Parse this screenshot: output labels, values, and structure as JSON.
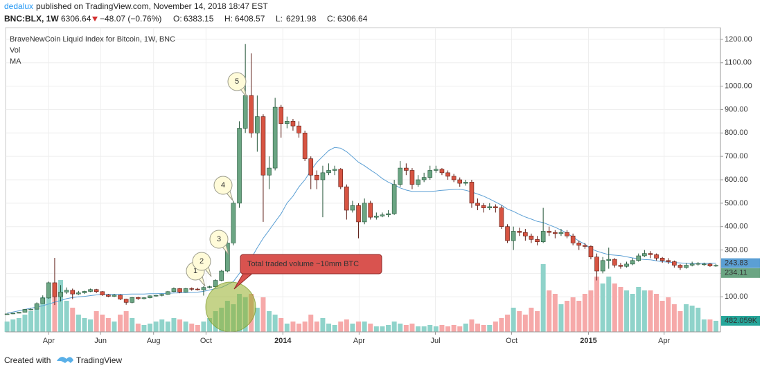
{
  "header": {
    "author": "dedalux",
    "byline": "published on TradingView.com, November 14, 2018 18:47 EST",
    "symbol": "BNC:BLX, 1W",
    "price": "6306.64",
    "change": "−48.07 (−0.76%)",
    "ohlc": [
      {
        "key": "O:",
        "value": "6383.15"
      },
      {
        "key": "H:",
        "value": "6408.57"
      },
      {
        "key": "L:",
        "value": "6291.98"
      },
      {
        "key": "C:",
        "value": "6306.64"
      }
    ]
  },
  "chart_data": {
    "type": "candlestick",
    "title": "BraveNewCoin Liquid Index for Bitcoin, 1W, BNC",
    "up_color": "#6ba583",
    "down_color": "#d75442",
    "grid": true,
    "open": [
      24,
      27,
      30,
      34,
      46,
      47,
      71,
      95,
      160,
      100,
      120,
      128,
      112,
      117,
      123,
      131,
      122,
      108,
      102,
      107,
      90,
      76,
      97,
      92,
      96,
      104,
      106,
      110,
      122,
      135,
      120,
      135,
      133,
      130,
      140,
      143,
      170,
      210,
      330,
      500,
      820,
      960,
      800,
      870,
      620,
      650,
      910,
      840,
      850,
      830,
      800,
      690,
      620,
      600,
      630,
      640,
      645,
      570,
      470,
      490,
      420,
      500,
      440,
      445,
      450,
      455,
      580,
      650,
      640,
      580,
      600,
      610,
      640,
      645,
      630,
      615,
      600,
      585,
      590,
      500,
      490,
      480,
      485,
      480,
      400,
      340,
      380,
      375,
      360,
      345,
      335,
      380,
      375,
      370,
      375,
      360,
      330,
      320,
      315,
      270,
      210,
      255,
      260,
      235,
      230,
      240,
      255,
      275,
      285,
      280,
      265,
      255,
      250,
      235,
      225,
      235,
      240,
      237,
      240,
      232
    ],
    "high": [
      28,
      31,
      35,
      48,
      50,
      76,
      106,
      165,
      266,
      150,
      140,
      135,
      125,
      126,
      135,
      134,
      124,
      112,
      112,
      110,
      92,
      99,
      100,
      98,
      107,
      108,
      113,
      125,
      140,
      137,
      138,
      140,
      138,
      145,
      147,
      175,
      215,
      340,
      510,
      850,
      1180,
      1140,
      960,
      880,
      700,
      950,
      920,
      870,
      860,
      850,
      810,
      700,
      640,
      660,
      670,
      660,
      650,
      580,
      510,
      500,
      520,
      510,
      460,
      460,
      470,
      600,
      680,
      670,
      650,
      620,
      630,
      660,
      660,
      650,
      640,
      625,
      610,
      600,
      600,
      520,
      500,
      500,
      495,
      490,
      410,
      400,
      395,
      390,
      370,
      360,
      480,
      400,
      385,
      390,
      385,
      370,
      340,
      330,
      320,
      285,
      270,
      310,
      265,
      245,
      250,
      265,
      285,
      300,
      295,
      285,
      270,
      265,
      255,
      240,
      245,
      250,
      248,
      246,
      244,
      240
    ],
    "low": [
      23,
      26,
      29,
      33,
      42,
      46,
      70,
      92,
      65,
      80,
      112,
      90,
      108,
      112,
      120,
      116,
      104,
      98,
      99,
      86,
      66,
      72,
      87,
      89,
      93,
      101,
      102,
      108,
      120,
      115,
      118,
      126,
      127,
      105,
      136,
      140,
      166,
      205,
      320,
      480,
      800,
      780,
      720,
      420,
      560,
      640,
      780,
      820,
      810,
      780,
      680,
      560,
      560,
      440,
      620,
      620,
      560,
      430,
      460,
      350,
      410,
      430,
      430,
      440,
      440,
      450,
      570,
      620,
      560,
      570,
      590,
      600,
      630,
      620,
      600,
      590,
      570,
      575,
      480,
      470,
      460,
      470,
      460,
      390,
      330,
      300,
      360,
      340,
      330,
      320,
      330,
      360,
      350,
      360,
      350,
      320,
      300,
      305,
      260,
      170,
      200,
      220,
      225,
      220,
      225,
      235,
      250,
      270,
      265,
      255,
      245,
      240,
      225,
      215,
      220,
      230,
      233,
      232,
      228,
      228
    ],
    "close": [
      27,
      30,
      34,
      46,
      47,
      71,
      95,
      160,
      100,
      120,
      128,
      112,
      117,
      123,
      131,
      122,
      108,
      102,
      107,
      90,
      76,
      97,
      92,
      96,
      104,
      106,
      110,
      122,
      135,
      120,
      135,
      133,
      130,
      140,
      143,
      170,
      210,
      330,
      500,
      820,
      960,
      800,
      870,
      620,
      650,
      910,
      840,
      850,
      830,
      800,
      690,
      620,
      600,
      630,
      640,
      645,
      570,
      470,
      490,
      420,
      500,
      440,
      445,
      450,
      455,
      580,
      650,
      640,
      580,
      600,
      610,
      640,
      645,
      630,
      615,
      600,
      585,
      590,
      500,
      490,
      480,
      485,
      480,
      400,
      340,
      380,
      375,
      360,
      345,
      335,
      380,
      375,
      370,
      375,
      360,
      330,
      320,
      315,
      270,
      210,
      255,
      260,
      235,
      230,
      240,
      255,
      275,
      285,
      280,
      265,
      255,
      250,
      235,
      225,
      235,
      240,
      242,
      240,
      232,
      234.11
    ],
    "volume": {
      "name": "Vol",
      "up_color": "#8fd3ca",
      "down_color": "#f6a9a9",
      "vlim": [
        0,
        3000000
      ],
      "values": [
        450000,
        540000,
        600000,
        750000,
        900000,
        1200000,
        1500000,
        1650000,
        2100000,
        2250000,
        1350000,
        1050000,
        750000,
        600000,
        540000,
        900000,
        750000,
        600000,
        450000,
        750000,
        900000,
        600000,
        360000,
        300000,
        360000,
        450000,
        540000,
        450000,
        600000,
        540000,
        450000,
        360000,
        300000,
        450000,
        600000,
        900000,
        1050000,
        1350000,
        1200000,
        1650000,
        1500000,
        1650000,
        1050000,
        1500000,
        900000,
        750000,
        600000,
        360000,
        450000,
        360000,
        450000,
        750000,
        450000,
        600000,
        360000,
        300000,
        450000,
        540000,
        360000,
        450000,
        450000,
        360000,
        240000,
        240000,
        300000,
        450000,
        360000,
        300000,
        360000,
        240000,
        240000,
        300000,
        240000,
        300000,
        240000,
        300000,
        240000,
        360000,
        540000,
        360000,
        300000,
        300000,
        450000,
        600000,
        750000,
        1050000,
        900000,
        750000,
        1050000,
        900000,
        2940000,
        1800000,
        1650000,
        1200000,
        1350000,
        1500000,
        1350000,
        1650000,
        1800000,
        2400000,
        2100000,
        2400000,
        2100000,
        1950000,
        1800000,
        1650000,
        1950000,
        1800000,
        1800000,
        1650000,
        1350000,
        1500000,
        1200000,
        900000,
        1200000,
        1140000,
        1050000,
        540000,
        540000,
        482059
      ],
      "value_labels": {
        "119": "482.059K"
      }
    },
    "ma": {
      "name": "MA",
      "color": "#5b9fd4",
      "values": [
        30,
        35,
        40,
        46,
        51,
        56,
        62,
        69,
        77,
        84,
        92,
        97,
        100,
        102,
        105,
        108,
        110,
        110,
        111,
        111,
        111,
        112,
        112,
        112,
        113,
        113,
        114,
        115,
        116,
        117,
        118,
        119,
        120,
        123,
        129,
        135,
        140,
        152,
        165,
        200,
        235,
        265,
        310,
        350,
        385,
        420,
        455,
        500,
        530,
        570,
        600,
        640,
        675,
        700,
        725,
        738,
        735,
        720,
        698,
        675,
        660,
        642,
        625,
        605,
        590,
        578,
        565,
        556,
        550,
        550,
        550,
        550,
        552,
        555,
        557,
        559,
        560,
        555,
        548,
        539,
        530,
        518,
        505,
        492,
        475,
        465,
        452,
        441,
        432,
        422,
        417,
        407,
        397,
        385,
        372,
        355,
        338,
        325,
        305,
        295,
        287,
        280,
        278,
        276,
        271,
        266,
        262,
        259,
        258,
        254,
        250,
        248,
        246,
        245,
        243,
        242,
        242,
        243,
        243.5,
        243.83
      ]
    },
    "ylim": [
      -50,
      1250
    ],
    "yticks": [
      {
        "value": 100,
        "label": "100.00"
      },
      {
        "value": 200,
        "label": "200.00"
      },
      {
        "value": 300,
        "label": "300.00"
      },
      {
        "value": 400,
        "label": "400.00"
      },
      {
        "value": 500,
        "label": "500.00"
      },
      {
        "value": 600,
        "label": "600.00"
      },
      {
        "value": 700,
        "label": "700.00"
      },
      {
        "value": 800,
        "label": "800.00"
      },
      {
        "value": 900,
        "label": "900.00"
      },
      {
        "value": 1000,
        "label": "1000.00"
      },
      {
        "value": 1100,
        "label": "1100.00"
      },
      {
        "value": 1200,
        "label": "1200.00"
      }
    ],
    "xlim": [
      -0.25,
      119.75
    ],
    "xticks": [
      {
        "value": 7,
        "label": "Apr"
      },
      {
        "value": 15.7,
        "label": "Jun"
      },
      {
        "value": 24.6,
        "label": "Aug"
      },
      {
        "value": 33.4,
        "label": "Oct"
      },
      {
        "value": 46.3,
        "label": "2014"
      },
      {
        "value": 59.1,
        "label": "Apr"
      },
      {
        "value": 71.9,
        "label": "Jul"
      },
      {
        "value": 84.7,
        "label": "Oct"
      },
      {
        "value": 97.6,
        "label": "2015"
      },
      {
        "value": 110.3,
        "label": "Apr"
      }
    ],
    "annotations": [
      {
        "text": "1"
      },
      {
        "text": "2"
      },
      {
        "text": "3"
      },
      {
        "text": "4"
      },
      {
        "text": "5"
      },
      {
        "text": "Total traded volume ~10mm BTC"
      }
    ]
  },
  "footer": {
    "text": "Created with",
    "brand": "TradingView"
  }
}
